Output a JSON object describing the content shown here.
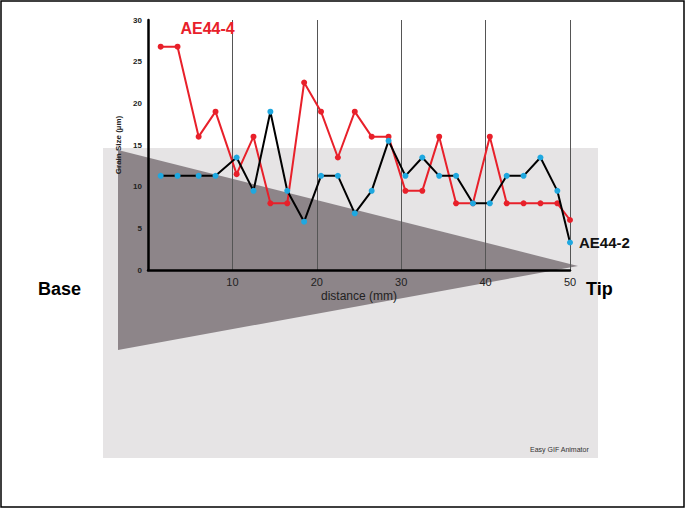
{
  "chart_data": {
    "type": "line",
    "x_label": "distance (mm)",
    "y_label": "Grain Size (µm)",
    "x": [
      1.5,
      3.5,
      6,
      8,
      10.5,
      12.5,
      14.5,
      16.5,
      18.5,
      20.5,
      22.5,
      24.5,
      26.5,
      28.5,
      30.5,
      32.5,
      34.5,
      36.5,
      38.5,
      40.5,
      42.5,
      44.5,
      46.5,
      48.5,
      50
    ],
    "series": [
      {
        "name": "AE44-4",
        "color": "#e8202a",
        "marker": "circle",
        "line_style": "solid",
        "values": [
          26.8,
          26.8,
          16,
          19,
          11.5,
          16,
          8,
          8,
          22.5,
          19,
          13.5,
          19,
          16,
          16,
          9.5,
          9.5,
          16,
          8,
          8,
          16,
          8,
          8,
          8,
          8,
          6
        ]
      },
      {
        "name": "AE44-2",
        "color": "#1fa8e0",
        "marker": "circle",
        "line_style": "solid",
        "values": [
          11.3,
          11.3,
          11.3,
          11.3,
          13.5,
          9.5,
          19,
          9.5,
          5.8,
          11.3,
          11.3,
          6.8,
          9.5,
          15.5,
          11.3,
          13.5,
          11.3,
          11.3,
          8,
          8,
          11.3,
          11.3,
          13.5,
          9.5,
          3.3
        ]
      }
    ],
    "xlim": [
      0,
      50
    ],
    "xticks": [
      10,
      20,
      30,
      40,
      50
    ],
    "ylim": [
      0,
      30
    ],
    "yticks": [
      0,
      5,
      10,
      15,
      20,
      25,
      30
    ],
    "grid": "x",
    "annotations": {
      "left_end": "Base",
      "right_end": "Tip",
      "watermark": "Easy GIF Animator"
    }
  }
}
